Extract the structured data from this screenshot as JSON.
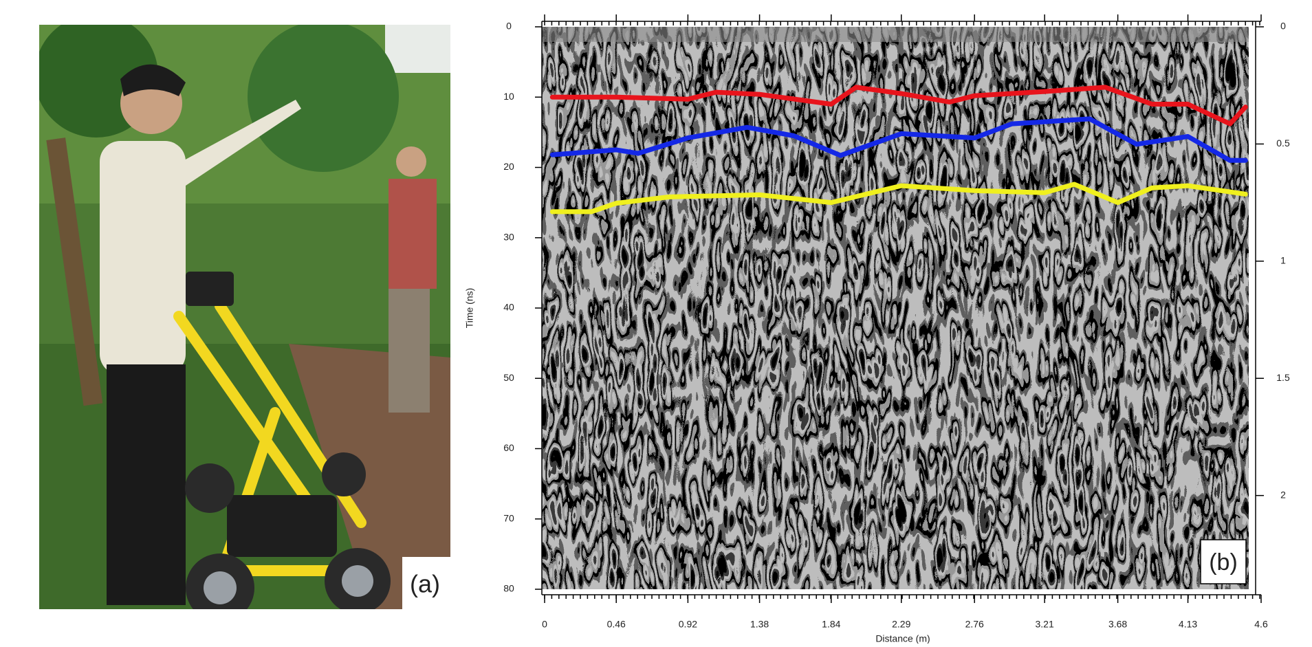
{
  "photo": {
    "label": "(a)"
  },
  "chart_data": {
    "type": "line",
    "annotation": "(b)",
    "x_label": "Distance (m)",
    "y_label": "Time (ns)",
    "xlim": [
      0,
      4.6
    ],
    "xticks": [
      0,
      0.46,
      0.92,
      1.38,
      1.84,
      2.29,
      2.76,
      3.21,
      3.68,
      4.13,
      4.6
    ],
    "ylim": [
      0,
      80
    ],
    "yticks": [
      0,
      10,
      20,
      30,
      40,
      50,
      60,
      70,
      80
    ],
    "y_reversed": true,
    "y2lim": [
      0,
      2.4
    ],
    "y2ticks": [
      0,
      0.5,
      1,
      1.5,
      2
    ],
    "series": [
      {
        "color": "#e8141c",
        "x": [
          0.05,
          0.46,
          0.92,
          1.1,
          1.38,
          1.84,
          2.0,
          2.29,
          2.6,
          2.76,
          3.21,
          3.6,
          3.9,
          4.13,
          4.4,
          4.5
        ],
        "values": [
          10,
          10,
          10.3,
          9.3,
          9.6,
          11,
          8.6,
          9.5,
          10.7,
          9.8,
          9.2,
          8.6,
          11,
          11,
          13.8,
          11.4
        ]
      },
      {
        "color": "#1428e6",
        "x": [
          0.05,
          0.46,
          0.6,
          0.92,
          1.3,
          1.6,
          1.9,
          2.29,
          2.76,
          3.0,
          3.5,
          3.8,
          4.13,
          4.4,
          4.5
        ],
        "values": [
          18.2,
          17.5,
          18,
          15.8,
          14.3,
          15.5,
          18.3,
          15.2,
          15.8,
          13.8,
          13.1,
          16.7,
          15.6,
          19,
          19
        ]
      },
      {
        "color": "#f0f01e",
        "x": [
          0.05,
          0.3,
          0.46,
          0.8,
          1.38,
          1.84,
          2.29,
          2.76,
          3.21,
          3.4,
          3.68,
          3.9,
          4.13,
          4.5
        ],
        "values": [
          26.3,
          26.3,
          25.1,
          24.2,
          23.9,
          25,
          22.6,
          23.3,
          23.6,
          22.4,
          25,
          22.9,
          22.6,
          23.8
        ]
      }
    ]
  }
}
